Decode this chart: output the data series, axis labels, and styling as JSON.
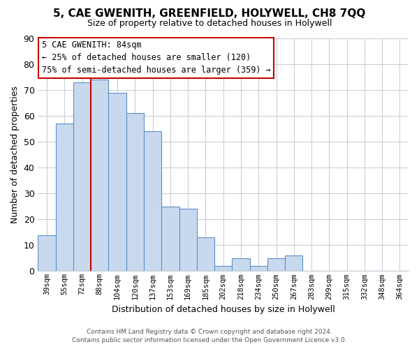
{
  "title": "5, CAE GWENITH, GREENFIELD, HOLYWELL, CH8 7QQ",
  "subtitle": "Size of property relative to detached houses in Holywell",
  "xlabel": "Distribution of detached houses by size in Holywell",
  "ylabel": "Number of detached properties",
  "bar_color": "#c8d9ee",
  "bar_edge_color": "#5b8fc9",
  "categories": [
    "39sqm",
    "55sqm",
    "72sqm",
    "88sqm",
    "104sqm",
    "120sqm",
    "137sqm",
    "153sqm",
    "169sqm",
    "185sqm",
    "202sqm",
    "218sqm",
    "234sqm",
    "250sqm",
    "267sqm",
    "283sqm",
    "299sqm",
    "315sqm",
    "332sqm",
    "348sqm",
    "364sqm"
  ],
  "values": [
    14,
    57,
    73,
    74,
    69,
    61,
    54,
    25,
    24,
    13,
    2,
    5,
    2,
    5,
    6,
    0,
    0,
    0,
    0,
    0,
    0
  ],
  "ylim": [
    0,
    90
  ],
  "yticks": [
    0,
    10,
    20,
    30,
    40,
    50,
    60,
    70,
    80,
    90
  ],
  "vline_index": 3,
  "vline_color": "#cc0000",
  "annotation_line1": "5 CAE GWENITH: 84sqm",
  "annotation_line2": "← 25% of detached houses are smaller (120)",
  "annotation_line3": "75% of semi-detached houses are larger (359) →",
  "footnote1": "Contains HM Land Registry data © Crown copyright and database right 2024.",
  "footnote2": "Contains public sector information licensed under the Open Government Licence v3.0.",
  "background_color": "#ffffff",
  "grid_color": "#c8d0d8"
}
